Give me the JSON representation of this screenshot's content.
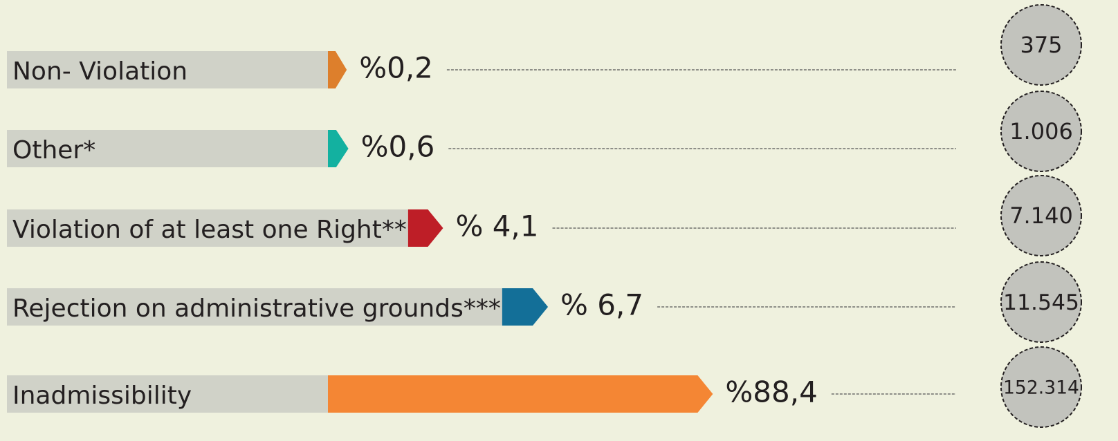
{
  "chart_data": {
    "type": "bar",
    "orientation": "horizontal",
    "categories": [
      "Non- Violation",
      "Other*",
      "Violation of at least one Right**",
      "Rejection on administrative grounds***",
      "Inadmissibility"
    ],
    "values": [
      0.2,
      0.6,
      4.1,
      6.7,
      88.4
    ],
    "value_labels": [
      "%0,2",
      "%0,6",
      "% 4,1",
      "% 6,7",
      "%88,4"
    ],
    "colors": [
      "#dd7f2c",
      "#13b1a0",
      "#be1e27",
      "#136f98",
      "#f48634"
    ],
    "counts": [
      375,
      1006,
      7140,
      11545,
      152314
    ],
    "count_labels": [
      "375",
      "1.006",
      "7.140",
      "11.545",
      "152.314"
    ]
  }
}
